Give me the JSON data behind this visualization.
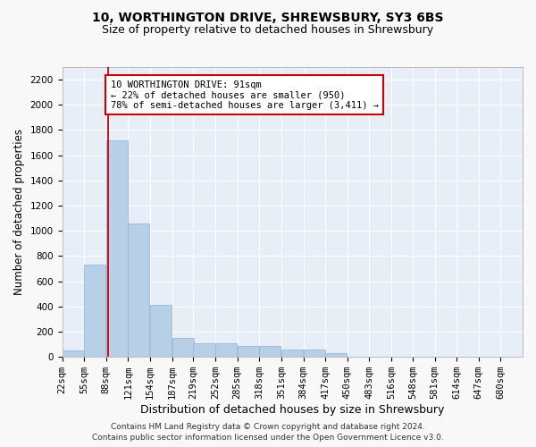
{
  "title": "10, WORTHINGTON DRIVE, SHREWSBURY, SY3 6BS",
  "subtitle": "Size of property relative to detached houses in Shrewsbury",
  "xlabel": "Distribution of detached houses by size in Shrewsbury",
  "ylabel": "Number of detached properties",
  "bar_color": "#b8cfe8",
  "bar_edge_color": "#8aafd4",
  "bg_color": "#e8eef7",
  "grid_color": "#ffffff",
  "bin_labels": [
    "22sqm",
    "55sqm",
    "88sqm",
    "121sqm",
    "154sqm",
    "187sqm",
    "219sqm",
    "252sqm",
    "285sqm",
    "318sqm",
    "351sqm",
    "384sqm",
    "417sqm",
    "450sqm",
    "483sqm",
    "516sqm",
    "548sqm",
    "581sqm",
    "614sqm",
    "647sqm",
    "680sqm"
  ],
  "bar_heights": [
    50,
    730,
    1720,
    1060,
    415,
    150,
    110,
    110,
    90,
    90,
    55,
    55,
    30,
    0,
    0,
    0,
    0,
    0,
    0,
    0,
    0
  ],
  "bin_edges": [
    22,
    55,
    88,
    121,
    154,
    187,
    219,
    252,
    285,
    318,
    351,
    384,
    417,
    450,
    483,
    516,
    548,
    581,
    614,
    647,
    680
  ],
  "bin_width": 33,
  "property_size": 91,
  "red_line_x": 91,
  "annotation_text": "10 WORTHINGTON DRIVE: 91sqm\n← 22% of detached houses are smaller (950)\n78% of semi-detached houses are larger (3,411) →",
  "annotation_box_color": "#ffffff",
  "annotation_box_edge": "#cc0000",
  "red_line_color": "#cc0000",
  "ylim": [
    0,
    2300
  ],
  "yticks": [
    0,
    200,
    400,
    600,
    800,
    1000,
    1200,
    1400,
    1600,
    1800,
    2000,
    2200
  ],
  "footer": "Contains HM Land Registry data © Crown copyright and database right 2024.\nContains public sector information licensed under the Open Government Licence v3.0.",
  "title_fontsize": 10,
  "subtitle_fontsize": 9,
  "xlabel_fontsize": 9,
  "ylabel_fontsize": 8.5,
  "tick_fontsize": 7.5,
  "annotation_fontsize": 7.5,
  "footer_fontsize": 6.5
}
